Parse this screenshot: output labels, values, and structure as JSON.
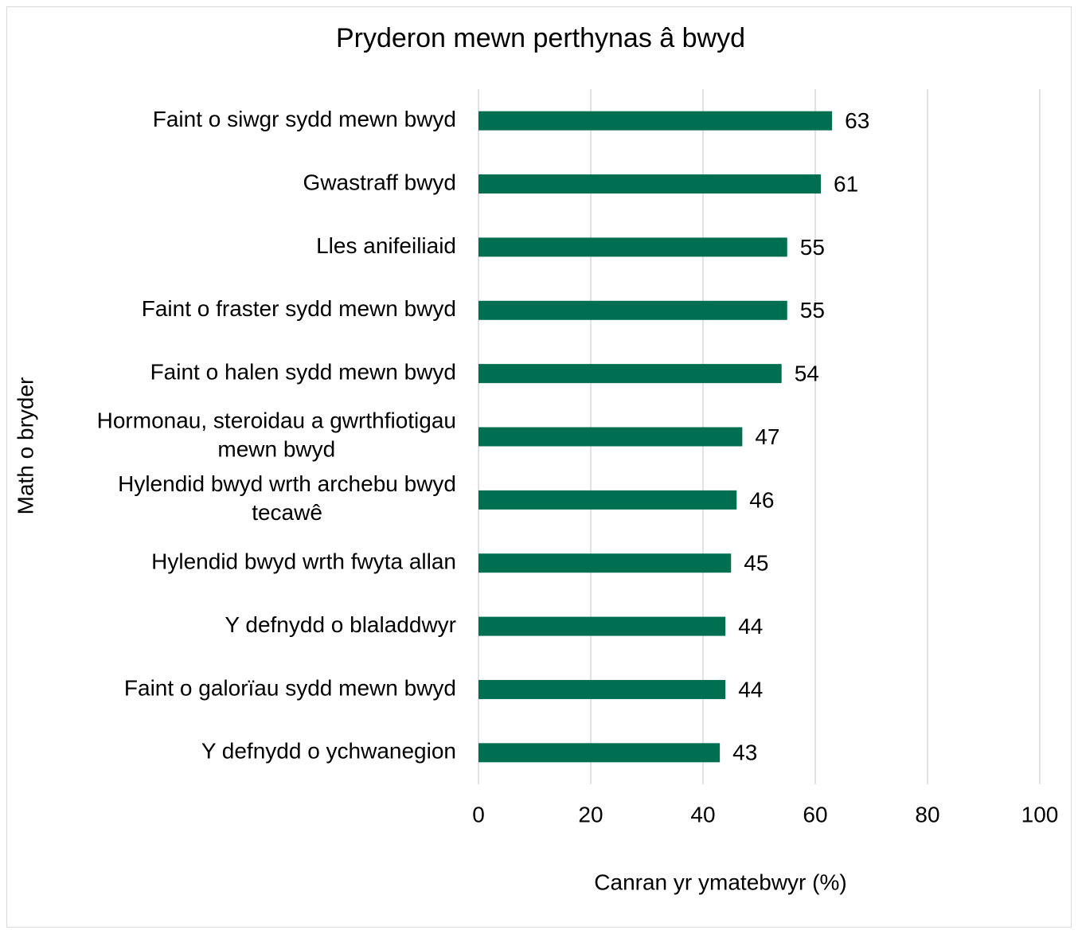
{
  "chart_data": {
    "type": "bar",
    "orientation": "horizontal",
    "title": "Pryderon mewn perthynas â bwyd",
    "x_label": "Canran yr ymatebwyr (%)",
    "y_label": "Math o bryder",
    "categories": [
      "Faint o siwgr sydd mewn bwyd",
      "Gwastraff bwyd",
      "Lles anifeiliaid",
      "Faint o fraster sydd mewn bwyd",
      "Faint o halen sydd mewn bwyd",
      "Hormonau, steroidau a gwrthfiotigau mewn bwyd",
      "Hylendid bwyd wrth archebu bwyd tecawê",
      "Hylendid bwyd wrth fwyta allan",
      "Y defnydd o blaladdwyr",
      "Faint o galorïau sydd mewn bwyd",
      "Y defnydd o ychwanegion"
    ],
    "values": [
      63,
      61,
      55,
      55,
      54,
      47,
      46,
      45,
      44,
      44,
      43
    ],
    "color": "#006f51",
    "xlim": [
      0,
      100
    ],
    "xticks": [
      0,
      20,
      40,
      60,
      80,
      100
    ],
    "grid": true
  }
}
